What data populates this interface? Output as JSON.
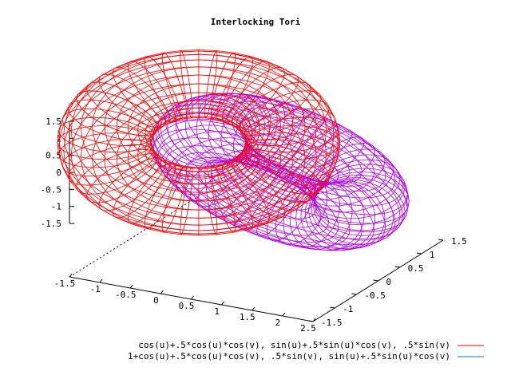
{
  "chart_data": {
    "type": "surface3d",
    "title": "Interlocking Tori",
    "grid": false,
    "legend_position": "bottom-right",
    "xrange": [
      -1.5,
      2.5
    ],
    "yrange": [
      -1.5,
      1.5
    ],
    "zrange": [
      -1.5,
      1.5
    ],
    "x_ticks": [
      "-1.5",
      "-1",
      "-0.5",
      "0",
      "0.5",
      "1",
      "1.5",
      "2",
      "2.5"
    ],
    "y_ticks": [
      "-1.5",
      "-1",
      "-0.5",
      "0",
      "0.5",
      "1",
      "1.5"
    ],
    "z_ticks": [
      "1.5",
      "1",
      "0.5",
      "0",
      "-0.5",
      "-1",
      "-1.5"
    ],
    "view": {
      "rot_x_deg": 60,
      "rot_z_deg": 30
    },
    "series": [
      {
        "name": "cos(u)+.5*cos(u)*cos(v), sin(u)+.5*sin(u)*cos(v), .5*sin(v)",
        "color": "#ff0000",
        "draw_color": "#ff0000",
        "u_range": [
          -3.14159,
          3.14159
        ],
        "v_range": [
          -3.14159,
          3.14159
        ],
        "iso_u": 48,
        "iso_v": 24
      },
      {
        "name": "1+cos(u)+.5*cos(u)*cos(v), .5*sin(v), sin(u)+.5*sin(u)*cos(v)",
        "color": "#0070e0",
        "draw_color": "#b000e8",
        "u_range": [
          -3.14159,
          3.14159
        ],
        "v_range": [
          -3.14159,
          3.14159
        ],
        "iso_u": 48,
        "iso_v": 24
      }
    ]
  }
}
